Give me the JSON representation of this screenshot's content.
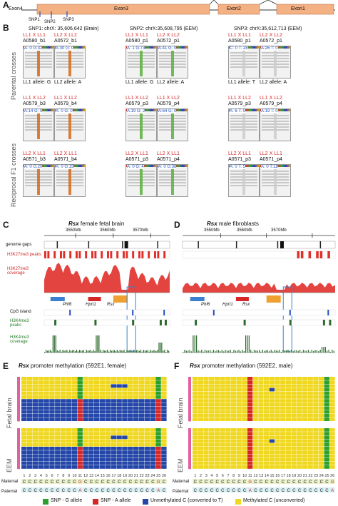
{
  "panel_a": {
    "label": "A",
    "exons": [
      "Exon4",
      "Exon3",
      "Exon2",
      "Exon1"
    ],
    "snps": [
      "SNP1",
      "SNP2",
      "SNP3"
    ]
  },
  "panel_b": {
    "label": "B",
    "snp_headers": [
      "SNP1: chrX: 35,606,642 (Brain)",
      "SNP2: chrX:35,608,795 (EEM)",
      "SNP3: chrX:35,612,713 (EEM)"
    ],
    "row_labels": [
      "Parental crosses",
      "Reciprocal F1 crosses"
    ],
    "parental": [
      {
        "cross": "LL1 X LL1",
        "sample": "A0580_b1",
        "counts": "A: 0  G:32"
      },
      {
        "cross": "LL2 X LL2",
        "sample": "A0572_b1",
        "counts": "A:30  G: 0"
      },
      {
        "cross": "LL1 X LL1",
        "sample": "A0580_p1",
        "counts": "A: 1  G:73"
      },
      {
        "cross": "LL2 X LL2",
        "sample": "A0572_p1",
        "counts": "A:41  G: 0"
      },
      {
        "cross": "LL1 X LL1",
        "sample": "A0580_p1",
        "counts": "C: 0  T: 28"
      },
      {
        "cross": "LL2 X LL2",
        "sample": "A0572_p1",
        "counts": "A:26  T: 0"
      }
    ],
    "parental_alleles": [
      "LL1 allele: G",
      "LL2 allele: A",
      "LL1 allele: G",
      "LL2 allele: A",
      "LL1 allele: T",
      "LL2 allele: A"
    ],
    "f1_row1": [
      {
        "cross": "LL1 X LL2",
        "sample": "A0579_b3",
        "counts": "A:14  G: 0"
      },
      {
        "cross": "LL1 X LL2",
        "sample": "A0579_b4",
        "counts": "A: 0  G: 0"
      },
      {
        "cross": "LL1 X LL2",
        "sample": "A0579_p3",
        "counts": "A:19  G: 2"
      },
      {
        "cross": "LL1 X LL2",
        "sample": "A0579_p4",
        "counts": "A:64  G: 0"
      },
      {
        "cross": "LL1 X LL2",
        "sample": "A0579_p3",
        "counts": "A: 6  T: 0"
      },
      {
        "cross": "LL1 X LL2",
        "sample": "A0579_p4",
        "counts": "A:19  T: 0"
      }
    ],
    "f1_row2": [
      {
        "cross": "LL2 X LL1",
        "sample": "A0571_b3",
        "counts": "A: 0  G:20"
      },
      {
        "cross": "LL2 X LL1",
        "sample": "A0571_b4",
        "counts": "A: 0  G:15"
      },
      {
        "cross": "LL2 X LL1",
        "sample": "A0571_p3",
        "counts": "A: 0  G: 4"
      },
      {
        "cross": "LL2 X LL1",
        "sample": "A0571_p4",
        "counts": "A: 0  G:36"
      },
      {
        "cross": "LL2 X LL1",
        "sample": "A0571_p3",
        "counts": "A: 0  T: 5"
      },
      {
        "cross": "LL2 X LL1",
        "sample": "A0571_p4",
        "counts": "A: 0  T:11"
      }
    ]
  },
  "panel_c": {
    "label": "C",
    "title_gene": "Rsx",
    "title_rest": " female fetal brain",
    "ticks": [
      "3550Mb",
      "3560Mb",
      "3570Mb"
    ]
  },
  "panel_d": {
    "label": "D",
    "title_gene": "Rsx",
    "title_rest": " male fibroblasts",
    "ticks": [
      "3550Mb",
      "3560Mb",
      "3570Mb"
    ]
  },
  "track_labels": {
    "gaps": "genome gaps",
    "k27_peaks": "H3K27me3 peaks",
    "k27_cov": "H3K27me3 coverage",
    "cpg": "CpG island",
    "k4_peaks": "H3K4me3 peaks",
    "k4_cov": "H3K4me3 coverage"
  },
  "genes": [
    "Phf6",
    "Hprt1",
    "Rsx"
  ],
  "panel_e": {
    "label": "E",
    "title_gene": "Rsx",
    "title_rest": " promoter methylation (592E1, female)",
    "groups": [
      "Fetal brain",
      "EEM"
    ]
  },
  "panel_f": {
    "label": "F",
    "title_gene": "Rsx",
    "title_rest": " promoter methylation (592E2, male)",
    "groups": [
      "Fetal brain",
      "EEM"
    ]
  },
  "seq_labels": {
    "maternal": "Maternal",
    "paternal": "Paternal",
    "positions": [
      "1",
      "2",
      "3",
      "4",
      "5",
      "6",
      "7",
      "8",
      "9",
      "10",
      "11",
      "12",
      "13",
      "14",
      "15",
      "16",
      "17",
      "18",
      "19",
      "20",
      "21",
      "22",
      "23",
      "24",
      "25",
      "26"
    ],
    "maternal_seq_e": "CCCCCCCCCCGCCCCCCCCCCCCCGCC",
    "paternal_seq_e": "CCCCCCCCCCACCCCCCCCCCCCCAC",
    "maternal_seq_f": "CCCCCCCCCCGCCCCCCCCCCCCCCGCC",
    "paternal_seq_f": "CCCCCCCCCCACCCCCCCCCCCCCCAC"
  },
  "legend": {
    "items": [
      {
        "label": "SNP - G allele",
        "color": "#2ca02c"
      },
      {
        "label": "SNP - A allele",
        "color": "#d62728"
      },
      {
        "label": "Unmethylated C (converted to T)",
        "color": "#2346a8"
      },
      {
        "label": "Methylated C (unconverted)",
        "color": "#f0d820"
      }
    ]
  },
  "colors": {
    "exon": "#f4b183",
    "methylated": "#f0d820",
    "unmethylated": "#2346a8",
    "snp_g": "#2ca02c",
    "snp_a": "#d62728",
    "k27": "#e0302a",
    "k4": "#2e6b2e",
    "pink": "#e060a0"
  }
}
